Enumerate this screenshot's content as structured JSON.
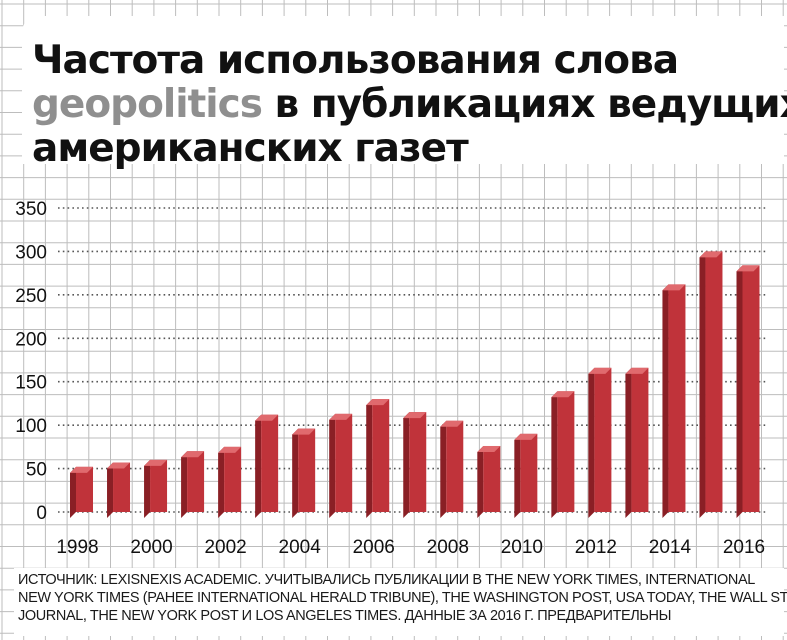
{
  "title": {
    "line1": "Частота использования слова",
    "line2_highlight": "geopolitics",
    "line2_rest": " в публикациях ведущих",
    "line3": "американских газет"
  },
  "chart_data": {
    "type": "bar",
    "title": "Частота использования слова geopolitics в публикациях ведущих американских газет",
    "xlabel": "",
    "ylabel": "",
    "categories": [
      "1998",
      "1999",
      "2000",
      "2001",
      "2002",
      "2003",
      "2004",
      "2005",
      "2006",
      "2007",
      "2008",
      "2009",
      "2010",
      "2011",
      "2012",
      "2013",
      "2014",
      "2015",
      "2016"
    ],
    "x_tick_labels": [
      "1998",
      "2000",
      "2002",
      "2004",
      "2006",
      "2008",
      "2010",
      "2012",
      "2014",
      "2016"
    ],
    "values": [
      52,
      57,
      60,
      70,
      75,
      112,
      96,
      113,
      130,
      115,
      105,
      76,
      90,
      139,
      166,
      166,
      262,
      300,
      284
    ],
    "ylim": [
      0,
      350
    ],
    "y_ticks": [
      0,
      50,
      100,
      150,
      200,
      250,
      300,
      350
    ],
    "grid": true,
    "bar_color": "#c0333a",
    "bar_shade_color": "#8a1f25",
    "bar_top_color": "#e06a6e"
  },
  "source": {
    "line1": "ИСТОЧНИК: LEXISNEXIS ACADEMIC. УЧИТЫВАЛИСЬ ПУБЛИКАЦИИ В THE NEW YORK TIMES, INTERNATIONAL",
    "line2": "NEW YORK TIMES (РАНЕЕ INTERNATIONAL HERALD TRIBUNE), THE WASHINGTON POST, USA TODAY, THE WALL STREET",
    "line3": "JOURNAL, THE NEW YORK POST И LOS ANGELES TIMES. ДАННЫЕ ЗА 2016 Г. ПРЕДВАРИТЕЛЬНЫ"
  }
}
